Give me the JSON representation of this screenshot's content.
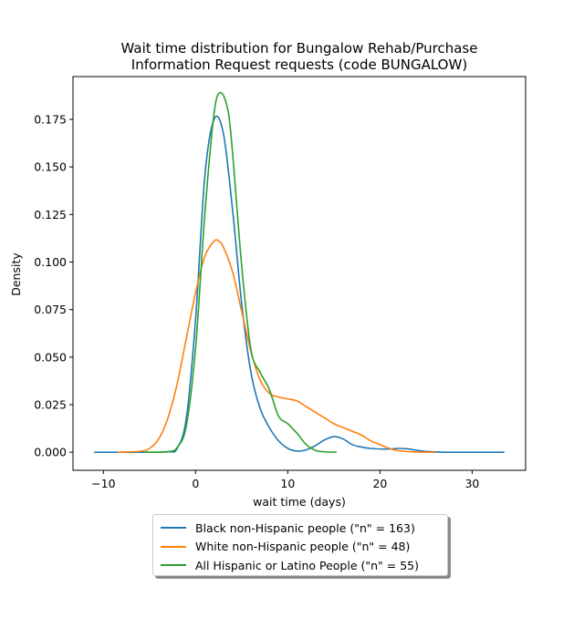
{
  "chart_data": {
    "type": "line",
    "title_line1": "Wait time distribution  for Bungalow Rehab/Purchase",
    "title_line2": "Information Request requests (code BUNGALOW)",
    "xlabel": "wait time (days)",
    "ylabel": "Density",
    "xlim": [
      -13.3,
      35.8
    ],
    "ylim": [
      -0.0095,
      0.1975
    ],
    "xticks": [
      -10,
      0,
      10,
      20,
      30
    ],
    "yticks": [
      0.0,
      0.025,
      0.05,
      0.075,
      0.1,
      0.125,
      0.15,
      0.175
    ],
    "xtick_labels": [
      "−10",
      "0",
      "10",
      "20",
      "30"
    ],
    "ytick_labels": [
      "0.000",
      "0.025",
      "0.050",
      "0.075",
      "0.100",
      "0.125",
      "0.150",
      "0.175"
    ],
    "grid": false,
    "legend_position": "below",
    "series": [
      {
        "name": "Black non-Hispanic people (\"n\" = 163)",
        "color": "#1f77b4",
        "x": [
          -11,
          -6,
          -3,
          -2,
          -1,
          0,
          1,
          2,
          3,
          4,
          5,
          6,
          7,
          8,
          9,
          10,
          11,
          12,
          13,
          14,
          15,
          16,
          17,
          18,
          19,
          20,
          21,
          22,
          23,
          24,
          25,
          27,
          30,
          33.5
        ],
        "y": [
          0,
          0,
          0.0002,
          0.002,
          0.018,
          0.07,
          0.145,
          0.175,
          0.168,
          0.128,
          0.078,
          0.042,
          0.023,
          0.013,
          0.006,
          0.002,
          0.0006,
          0.0012,
          0.0035,
          0.0065,
          0.0082,
          0.007,
          0.004,
          0.0027,
          0.002,
          0.0017,
          0.0017,
          0.002,
          0.0018,
          0.001,
          0.0004,
          0,
          0,
          0
        ]
      },
      {
        "name": "White non-Hispanic people (\"n\" = 48)",
        "color": "#ff7f0e",
        "x": [
          -8.5,
          -6,
          -5,
          -4,
          -3,
          -2,
          -1,
          0,
          1,
          2,
          2.5,
          3,
          4,
          5,
          6,
          7,
          8,
          9,
          10,
          11,
          12,
          13,
          14,
          15,
          16,
          17,
          18,
          19,
          20,
          21,
          22,
          24,
          26
        ],
        "y": [
          0,
          0.0005,
          0.002,
          0.007,
          0.018,
          0.036,
          0.06,
          0.084,
          0.103,
          0.111,
          0.111,
          0.108,
          0.095,
          0.074,
          0.053,
          0.038,
          0.031,
          0.029,
          0.028,
          0.027,
          0.024,
          0.021,
          0.018,
          0.015,
          0.013,
          0.011,
          0.009,
          0.006,
          0.004,
          0.002,
          0.0008,
          0.0001,
          0
        ]
      },
      {
        "name": "All Hispanic or Latino People (\"n\" = 55)",
        "color": "#2ca02c",
        "x": [
          -5.5,
          -3,
          -2,
          -1,
          0,
          1,
          2,
          2.7,
          3.5,
          4,
          5,
          6,
          7,
          8,
          9,
          10,
          11,
          12,
          13,
          14,
          15.3
        ],
        "y": [
          0,
          0.0003,
          0.0025,
          0.014,
          0.055,
          0.125,
          0.178,
          0.189,
          0.18,
          0.158,
          0.098,
          0.054,
          0.042,
          0.033,
          0.019,
          0.015,
          0.01,
          0.004,
          0.001,
          0.0002,
          0
        ]
      }
    ]
  }
}
